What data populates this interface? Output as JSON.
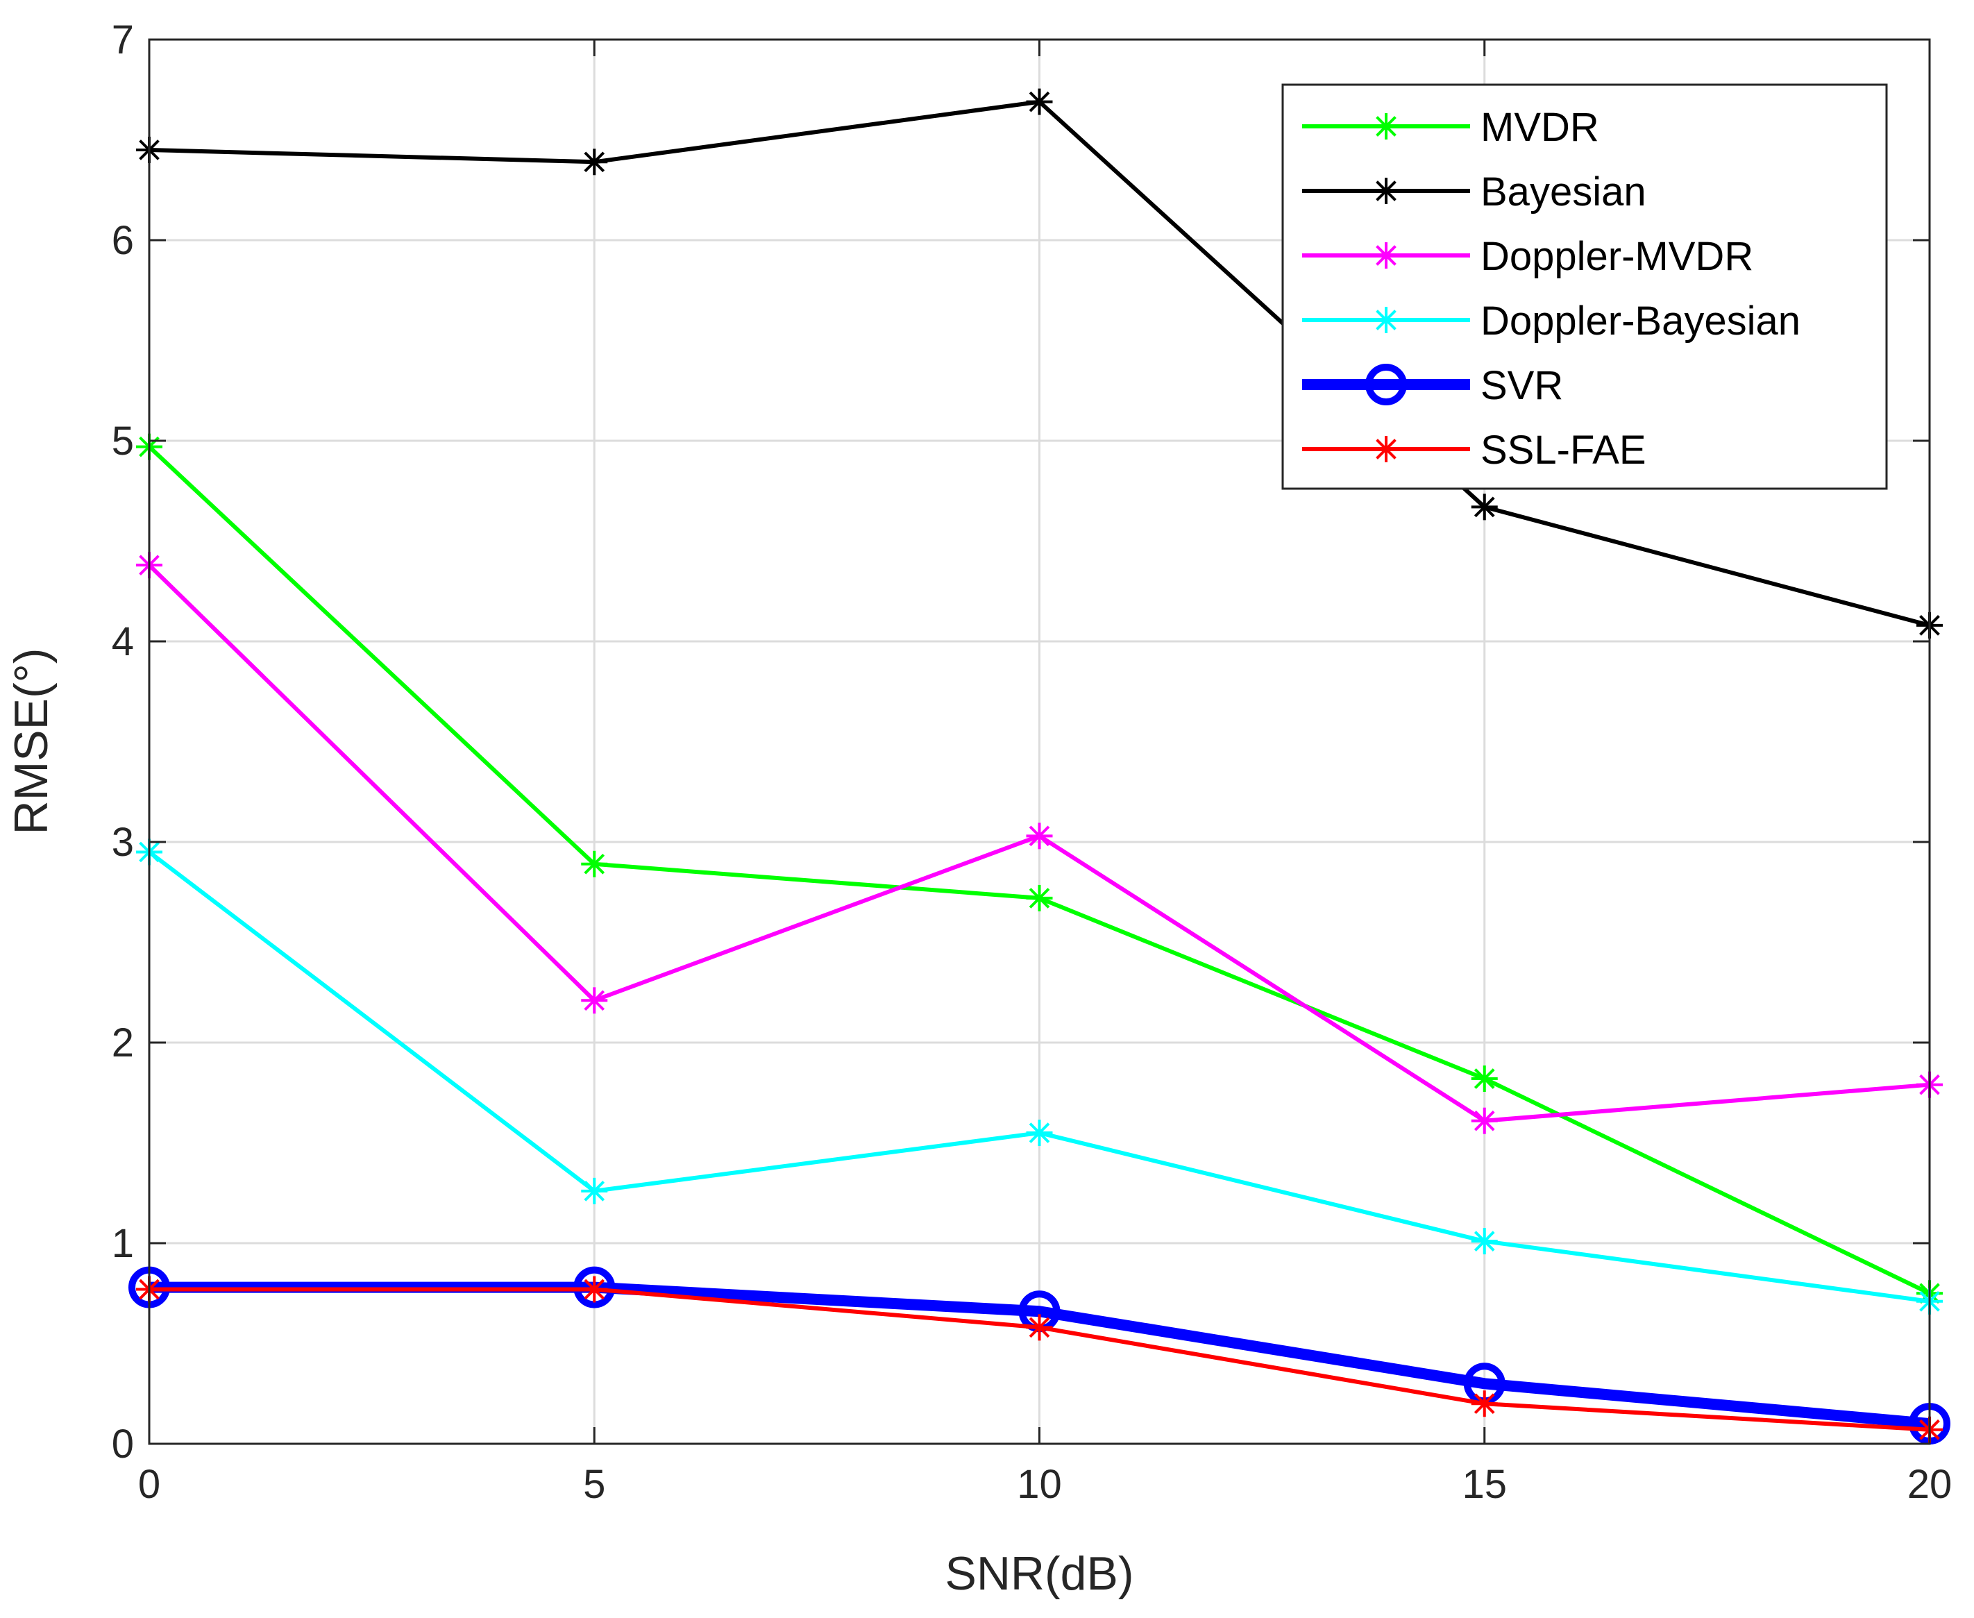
{
  "chart_data": {
    "type": "line",
    "title": "",
    "xlabel": "SNR(dB)",
    "ylabel": "RMSE(°)",
    "x": [
      0,
      5,
      10,
      15,
      20
    ],
    "xlim": [
      0,
      20
    ],
    "ylim": [
      0,
      7
    ],
    "xticks": [
      0,
      5,
      10,
      15,
      20
    ],
    "yticks": [
      0,
      1,
      2,
      3,
      4,
      5,
      6,
      7
    ],
    "grid": true,
    "legend_position": "top-right",
    "series": [
      {
        "name": "MVDR",
        "label": "MVDR",
        "color": "#00ff00",
        "marker": "asterisk",
        "values": [
          4.97,
          2.89,
          2.72,
          1.82,
          0.75
        ]
      },
      {
        "name": "Bayesian",
        "label": "Bayesian",
        "color": "#000000",
        "marker": "asterisk",
        "values": [
          6.45,
          6.39,
          6.69,
          4.67,
          4.08
        ]
      },
      {
        "name": "Doppler-MVDR",
        "label": "Doppler-MVDR",
        "color": "#ff00ff",
        "marker": "asterisk",
        "values": [
          4.38,
          2.21,
          3.03,
          1.61,
          1.79
        ]
      },
      {
        "name": "Doppler-Bayesian",
        "label": "Doppler-Bayesian",
        "color": "#00ffff",
        "marker": "asterisk",
        "values": [
          2.95,
          1.26,
          1.55,
          1.01,
          0.71
        ]
      },
      {
        "name": "SVR",
        "label": "SVR",
        "color": "#0000ff",
        "marker": "circle",
        "thick": true,
        "values": [
          0.78,
          0.78,
          0.66,
          0.3,
          0.1
        ]
      },
      {
        "name": "SSL-FAE",
        "label": "SSL-FAE",
        "color": "#ff0000",
        "marker": "asterisk",
        "values": [
          0.77,
          0.77,
          0.58,
          0.2,
          0.07
        ]
      }
    ]
  }
}
